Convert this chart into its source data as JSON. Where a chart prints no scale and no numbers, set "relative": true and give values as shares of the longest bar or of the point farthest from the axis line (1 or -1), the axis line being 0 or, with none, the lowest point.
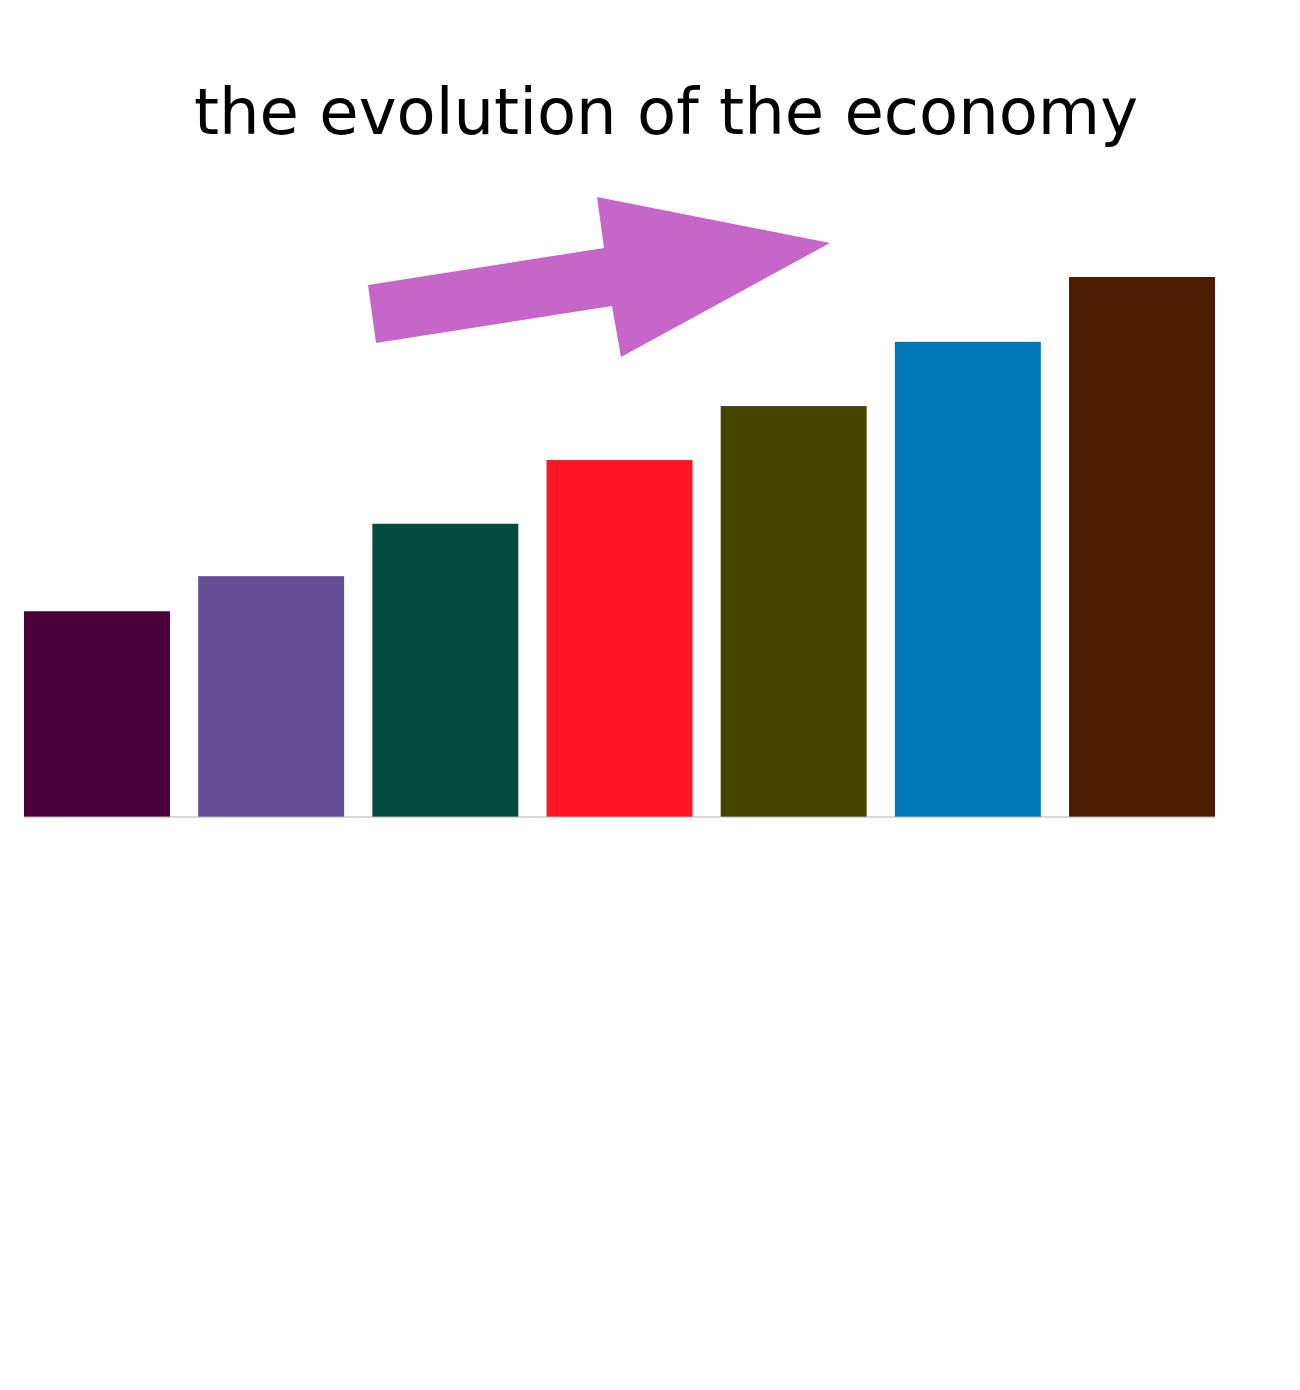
{
  "chart_data": {
    "type": "bar",
    "title": "the evolution of the economy",
    "relative": true,
    "categories": [
      null,
      null,
      null,
      null,
      null,
      null,
      null
    ],
    "values": [
      0.381,
      0.446,
      0.543,
      0.661,
      0.761,
      0.88,
      1
    ],
    "colors": [
      "#4a003a",
      "#634e96",
      "#044d3e",
      "#fe1624",
      "#434501",
      "#0077b6",
      "#4a1b03"
    ]
  }
}
